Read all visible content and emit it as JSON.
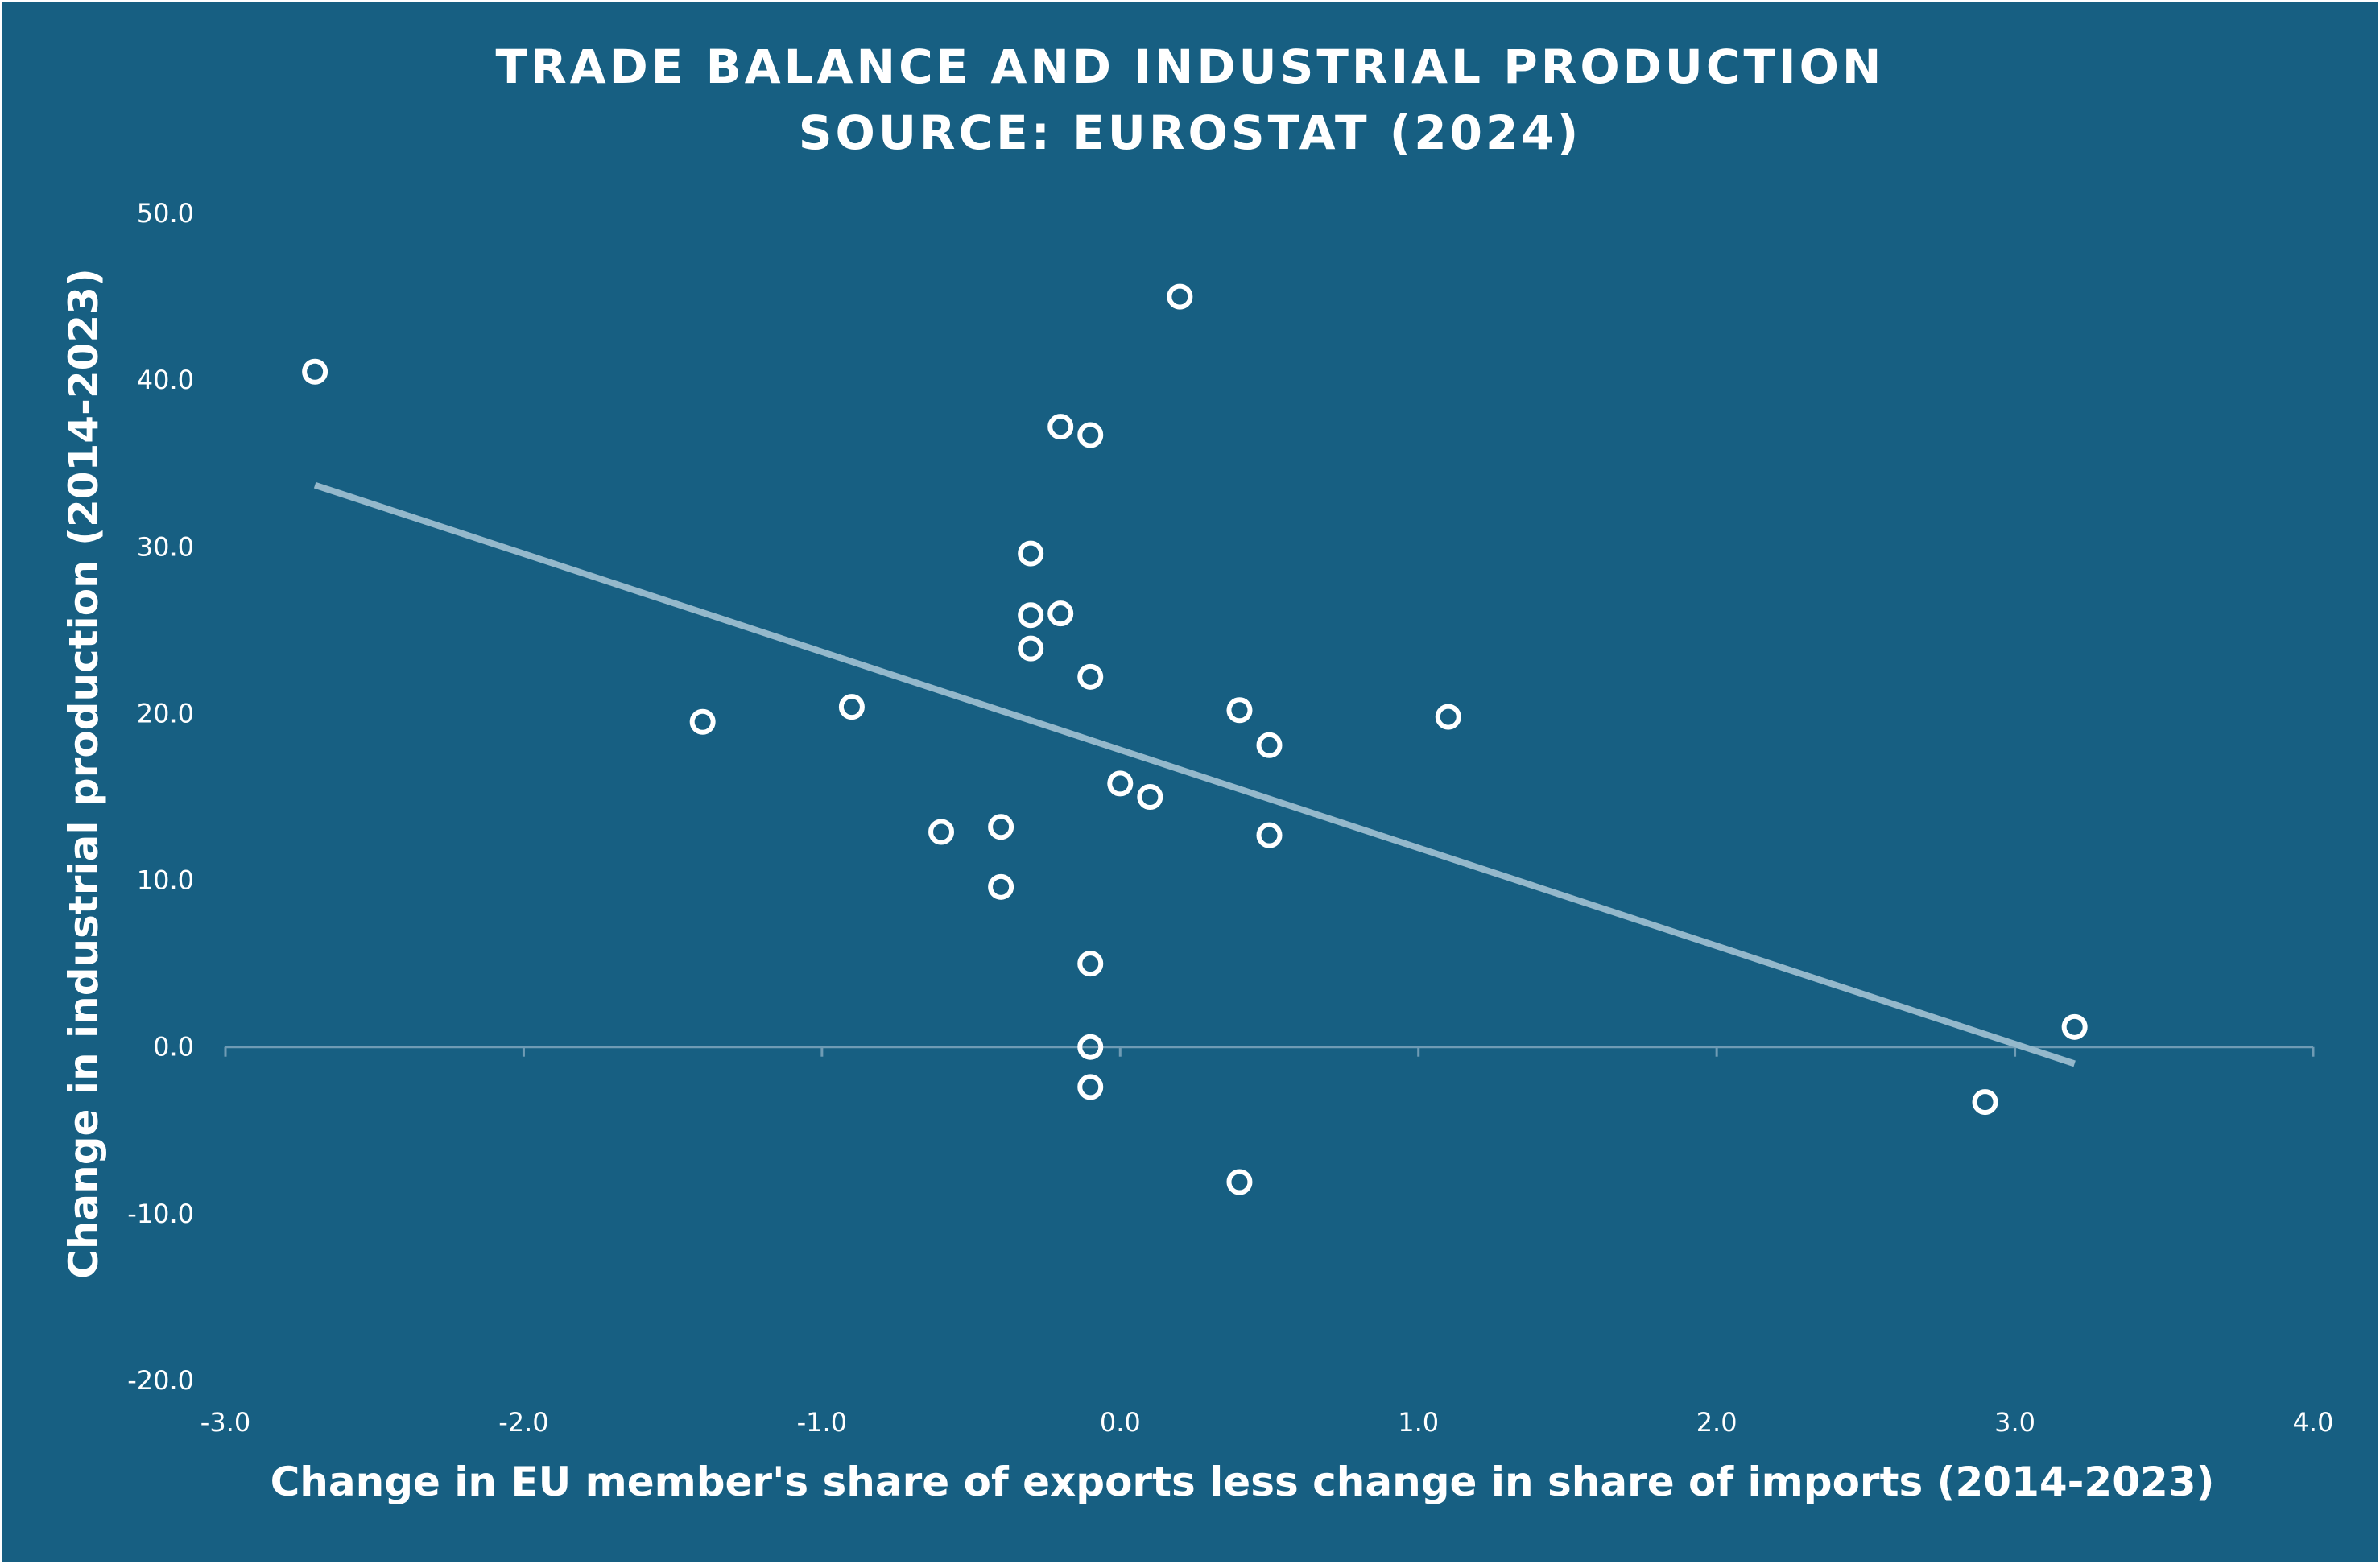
{
  "chart_data": {
    "type": "scatter",
    "title": "TRADE BALANCE AND INDUSTRIAL PRODUCTION",
    "subtitle": "SOURCE: EUROSTAT (2024)",
    "xlabel": "Change in EU member's share of exports less change in share of imports (2014-2023)",
    "ylabel": "Change in industrial production (2014-2023)",
    "xlim": [
      -3.0,
      4.0
    ],
    "ylim": [
      -20.0,
      50.0
    ],
    "x_ticks": [
      "-3.0",
      "-2.0",
      "-1.0",
      "0.0",
      "1.0",
      "2.0",
      "3.0",
      "4.0"
    ],
    "y_ticks": [
      "50.0",
      "40.0",
      "30.0",
      "20.0",
      "10.0",
      "0.0",
      "-10.0",
      "-20.0"
    ],
    "grid": false,
    "legend": "none",
    "points": [
      {
        "x": -2.7,
        "y": 40.5
      },
      {
        "x": -1.4,
        "y": 19.5
      },
      {
        "x": -0.9,
        "y": 20.4
      },
      {
        "x": -0.6,
        "y": 12.9
      },
      {
        "x": -0.4,
        "y": 13.2
      },
      {
        "x": -0.4,
        "y": 9.6
      },
      {
        "x": -0.3,
        "y": 29.6
      },
      {
        "x": -0.3,
        "y": 25.9
      },
      {
        "x": -0.3,
        "y": 23.9
      },
      {
        "x": -0.2,
        "y": 37.2
      },
      {
        "x": -0.2,
        "y": 26.0
      },
      {
        "x": -0.1,
        "y": 36.7
      },
      {
        "x": -0.1,
        "y": 22.2
      },
      {
        "x": -0.1,
        "y": 5.0
      },
      {
        "x": -0.1,
        "y": 0.0
      },
      {
        "x": -0.1,
        "y": -2.4
      },
      {
        "x": 0.0,
        "y": 15.8
      },
      {
        "x": 0.1,
        "y": 15.0
      },
      {
        "x": 0.2,
        "y": 45.0
      },
      {
        "x": 0.4,
        "y": 20.2
      },
      {
        "x": 0.4,
        "y": -8.1
      },
      {
        "x": 0.5,
        "y": 18.1
      },
      {
        "x": 0.5,
        "y": 12.7
      },
      {
        "x": 1.1,
        "y": 19.8
      },
      {
        "x": 2.9,
        "y": -3.3
      },
      {
        "x": 3.2,
        "y": 1.2
      }
    ],
    "trendline": {
      "x": [
        -2.7,
        3.2
      ],
      "y": [
        33.7,
        -1.0
      ]
    },
    "colors": {
      "background": "#175f82",
      "point": "#ffffff",
      "trendline": "#94b8cb",
      "axis": "#6f9bb4",
      "text": "#ffffff"
    }
  }
}
